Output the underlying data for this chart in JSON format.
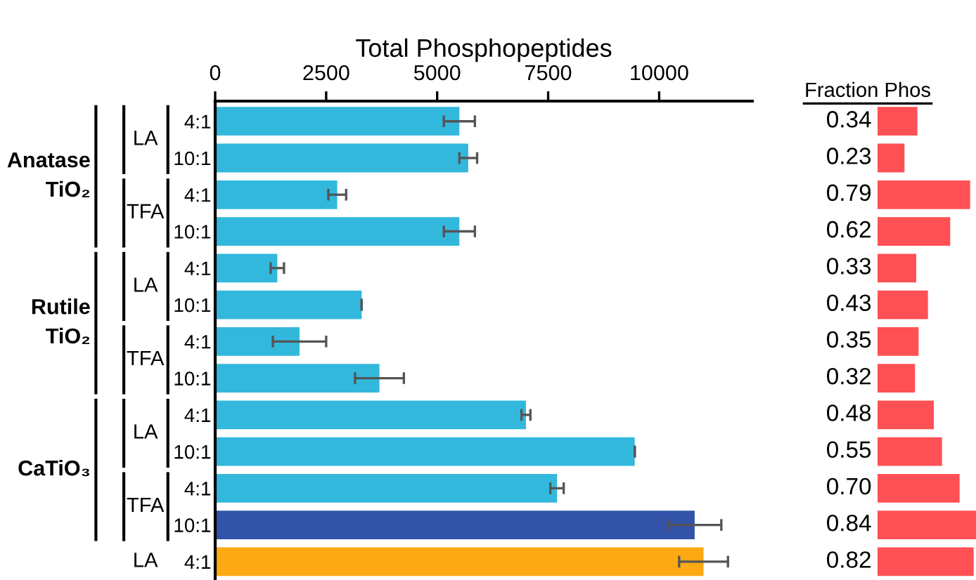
{
  "chart_data": [
    {
      "type": "bar",
      "orientation": "horizontal",
      "xlabel": "Total Phosphopeptides",
      "categories": [
        "4:1",
        "10:1",
        "4:1",
        "10:1",
        "4:1",
        "10:1",
        "4:1",
        "10:1",
        "4:1",
        "10:1",
        "4:1",
        "10:1",
        "4:1"
      ],
      "values": [
        5500,
        5700,
        2750,
        5500,
        1400,
        3300,
        1900,
        3700,
        7000,
        9450,
        7700,
        10800,
        11000
      ],
      "errors": [
        350,
        200,
        200,
        350,
        150,
        null,
        600,
        550,
        100,
        null,
        150,
        600,
        550
      ],
      "colors": [
        "#33b8dd",
        "#33b8dd",
        "#33b8dd",
        "#33b8dd",
        "#33b8dd",
        "#33b8dd",
        "#33b8dd",
        "#33b8dd",
        "#33b8dd",
        "#33b8dd",
        "#33b8dd",
        "#3353a8",
        "#fca913"
      ],
      "xlim": [
        0,
        12100
      ],
      "xticks": [
        0,
        2500,
        5000,
        7500,
        10000
      ],
      "annotations": [
        "Anatase\nTiO₂",
        "LA",
        "TFA",
        "Rutile\nTiO₂",
        "LA",
        "TFA",
        "CaTiO₃",
        "LA",
        "TFA",
        "LA"
      ]
    },
    {
      "type": "bar",
      "orientation": "horizontal",
      "title": "Fraction Phos",
      "categories": [
        null,
        null,
        null,
        null,
        null,
        null,
        null,
        null,
        null,
        null,
        null,
        null,
        null
      ],
      "values": [
        0.34,
        0.23,
        0.79,
        0.62,
        0.33,
        0.43,
        0.35,
        0.32,
        0.48,
        0.55,
        0.7,
        0.84,
        0.82
      ],
      "colors": [
        "#ff5055",
        "#ff5055",
        "#ff5055",
        "#ff5055",
        "#ff5055",
        "#ff5055",
        "#ff5055",
        "#ff5055",
        "#ff5055",
        "#ff5055",
        "#ff5055",
        "#ff5055",
        "#ff5055"
      ],
      "value_labels": [
        "0.34",
        "0.23",
        "0.79",
        "0.62",
        "0.33",
        "0.43",
        "0.35",
        "0.32",
        "0.48",
        "0.55",
        "0.70",
        "0.84",
        "0.82"
      ],
      "xlim": [
        0,
        0.84
      ]
    }
  ]
}
